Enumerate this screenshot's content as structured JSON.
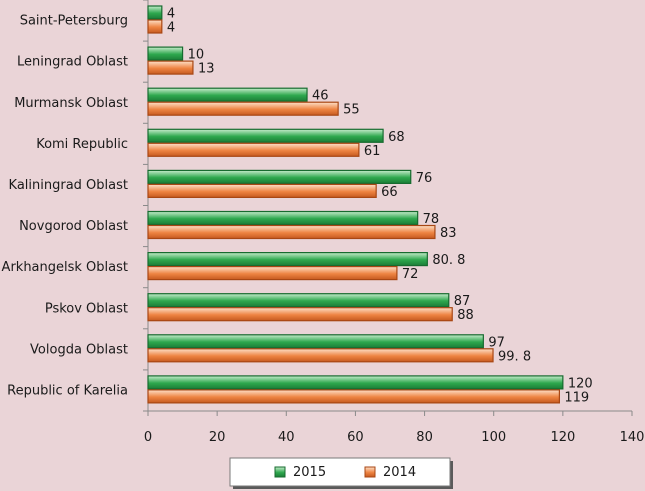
{
  "chart_data": {
    "type": "bar",
    "orientation": "horizontal",
    "categories": [
      "Saint-Petersburg",
      "Leningrad Oblast",
      "Murmansk Oblast",
      "Komi Republic",
      "Kaliningrad Oblast",
      "Novgorod Oblast",
      "Arkhangelsk Oblast",
      "Pskov Oblast",
      "Vologda Oblast",
      "Republic of Karelia"
    ],
    "series": [
      {
        "name": "2015",
        "values": [
          4,
          10,
          46,
          68,
          76,
          78,
          80.8,
          87,
          97,
          120
        ],
        "labels": [
          "4",
          "10",
          "46",
          "68",
          "76",
          "78",
          "80. 8",
          "87",
          "97",
          "120"
        ]
      },
      {
        "name": "2014",
        "values": [
          4,
          13,
          55,
          61,
          66,
          83,
          72,
          88,
          99.8,
          119
        ],
        "labels": [
          "4",
          "13",
          "55",
          "61",
          "66",
          "83",
          "72",
          "88",
          "99. 8",
          "119"
        ]
      }
    ],
    "xlim": [
      0,
      140
    ],
    "xticks": [
      0,
      20,
      40,
      60,
      80,
      100,
      120,
      140
    ],
    "grid": false,
    "legend_position": "bottom",
    "colors": {
      "2015": "#22a24a",
      "2014": "#e87a3c"
    },
    "background": "#ead4d7"
  }
}
